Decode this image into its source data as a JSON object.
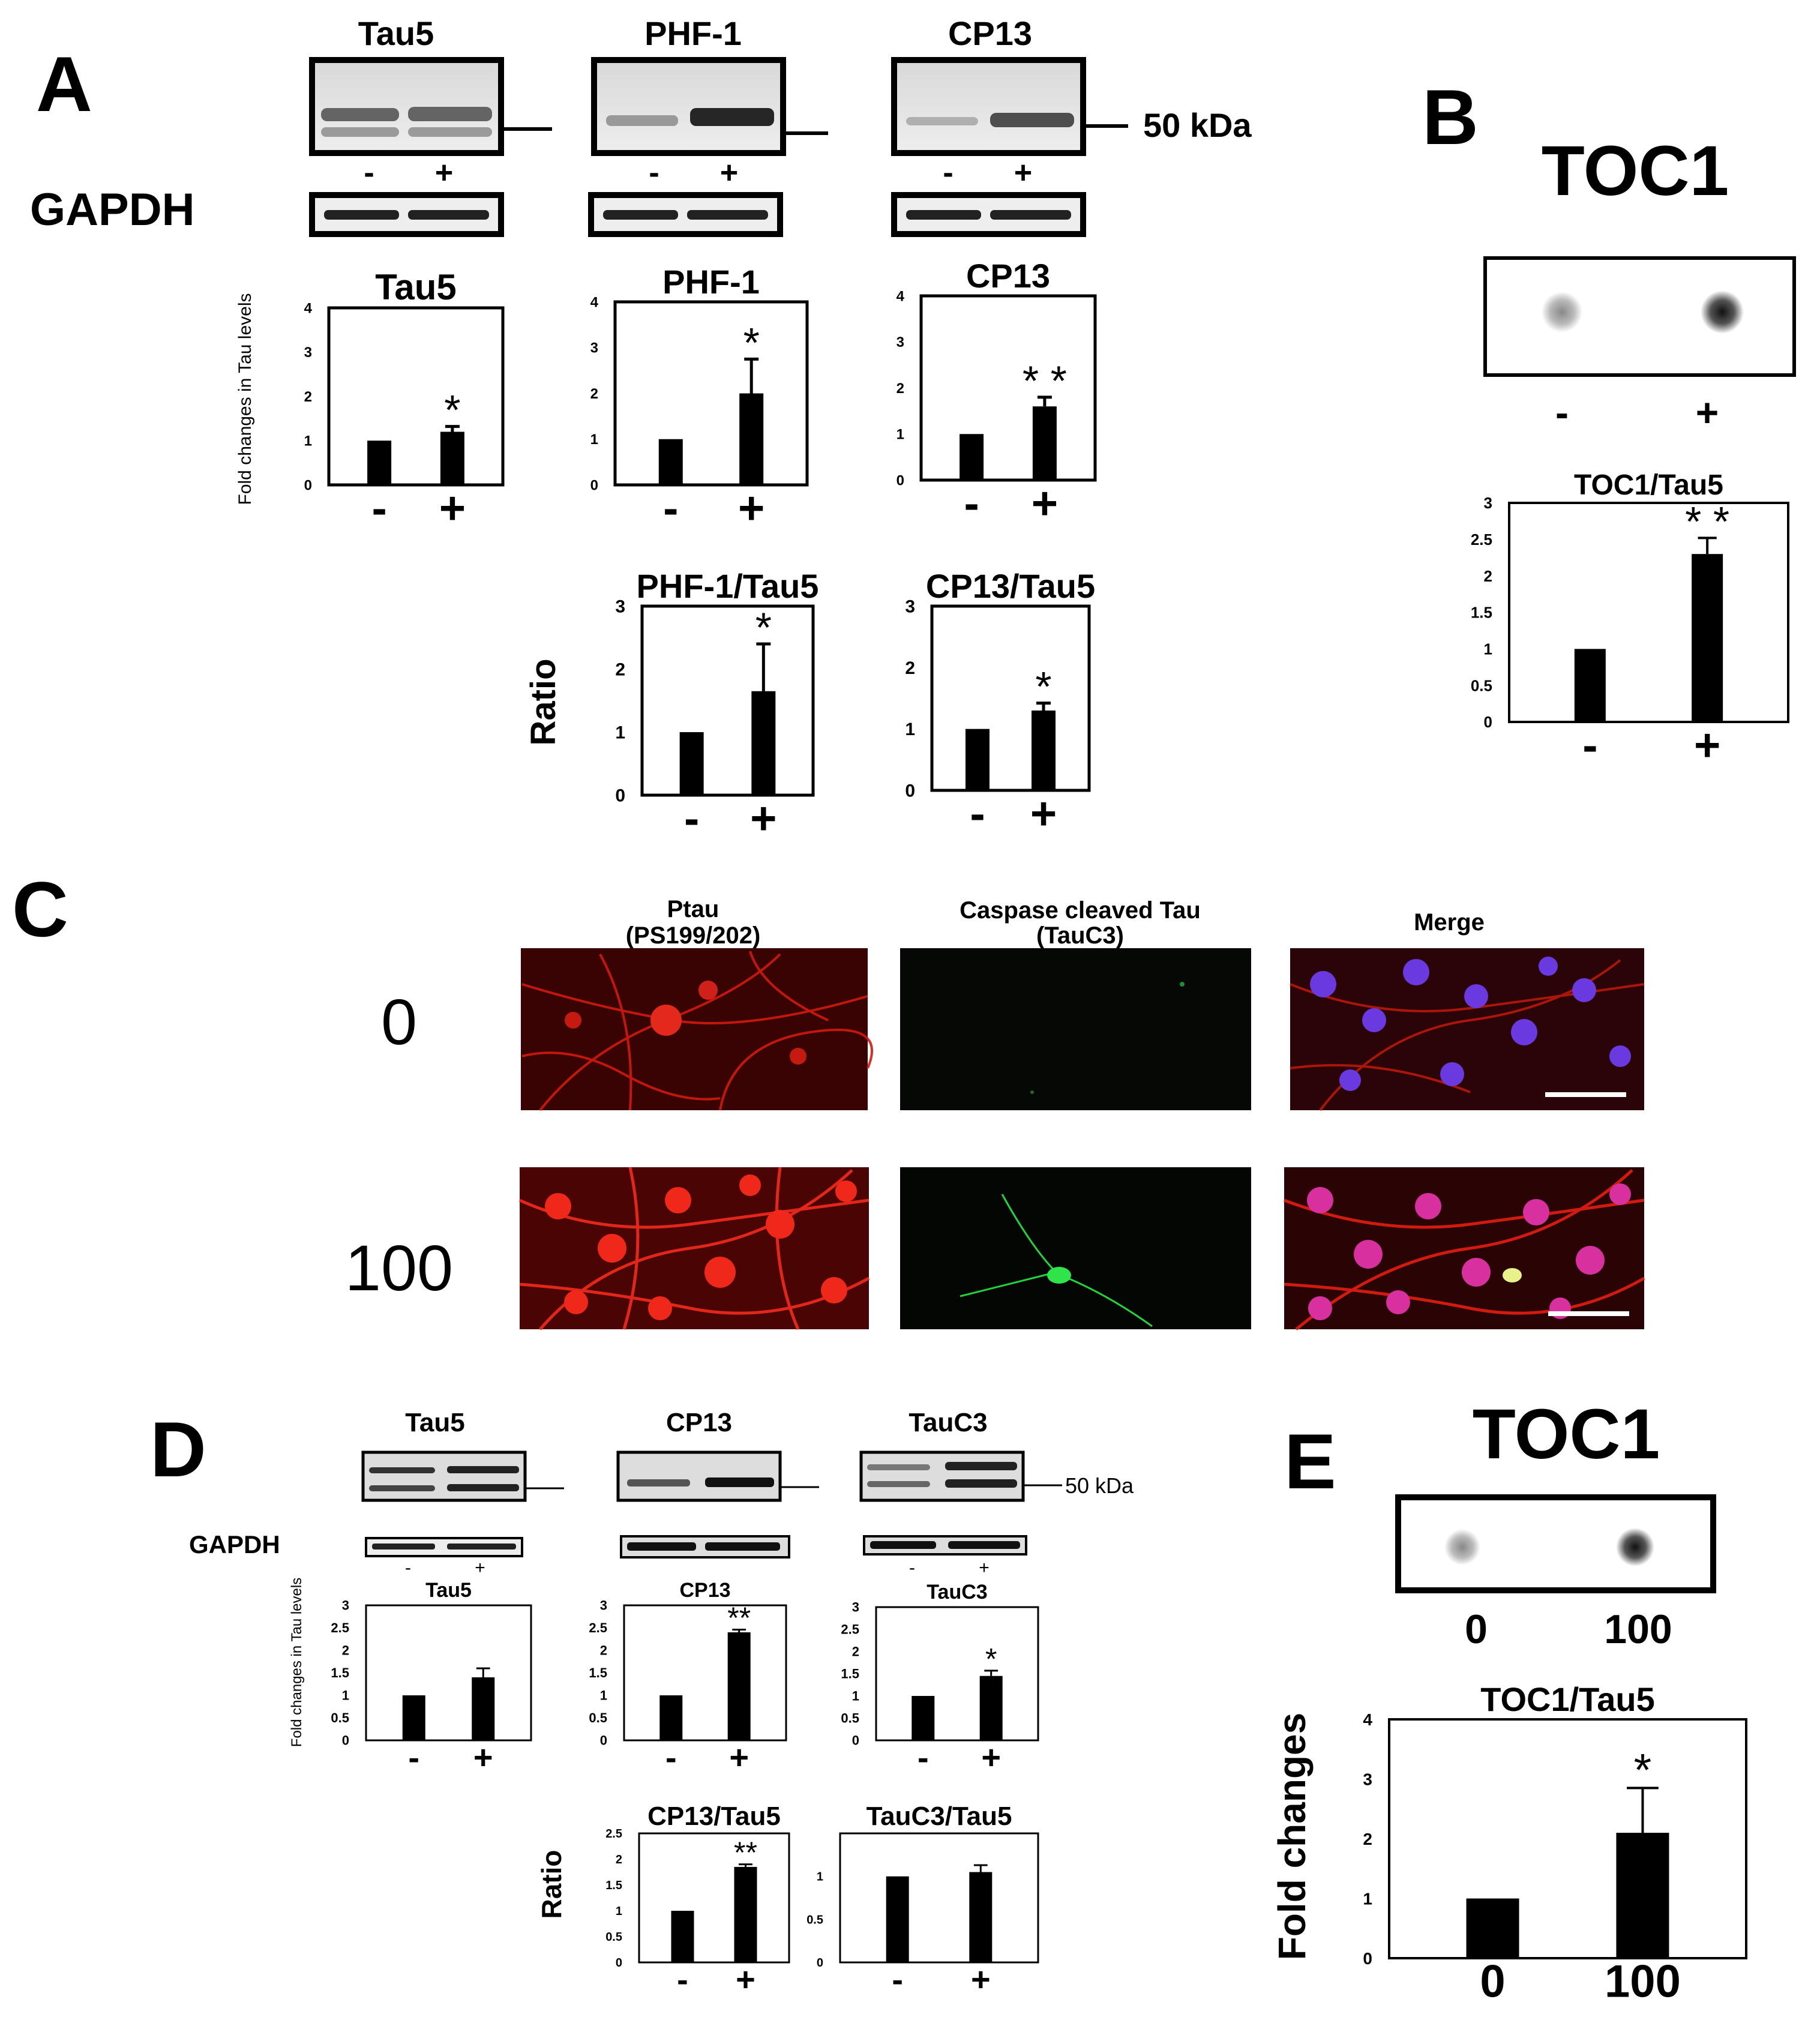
{
  "panels": {
    "A": "A",
    "B": "B",
    "C": "C",
    "D": "D",
    "E": "E"
  },
  "A": {
    "blot_titles": [
      "Tau5",
      "PHF-1",
      "CP13"
    ],
    "lane_labels": [
      "-",
      "+"
    ],
    "marker": "50 kDa",
    "loading": "GAPDH",
    "ylabel_fold": "Fold changes in Tau levels",
    "ylabel_ratio": "Ratio"
  },
  "B": {
    "title": "TOC1",
    "lane_labels": [
      "-",
      "+"
    ]
  },
  "C": {
    "col_titles": [
      [
        "Ptau",
        "(PS199/202)"
      ],
      [
        "Caspase cleaved Tau",
        "(TauC3)"
      ],
      [
        "Merge"
      ]
    ],
    "row_labels": [
      "0",
      "100"
    ]
  },
  "D": {
    "blot_titles": [
      "Tau5",
      "CP13",
      "TauC3"
    ],
    "lane_labels": [
      "-",
      "+"
    ],
    "marker": "50 kDa",
    "loading": "GAPDH",
    "ylabel_fold": "Fold changes in Tau levels",
    "ylabel_ratio": "Ratio"
  },
  "E": {
    "title": "TOC1",
    "lane_labels": [
      "0",
      "100"
    ],
    "ylabel": "Fold changes"
  },
  "chart_data": [
    {
      "id": "A-Tau5",
      "type": "bar",
      "title": "Tau5",
      "categories": [
        "-",
        "+"
      ],
      "values": [
        1,
        1.2
      ],
      "errors": [
        0,
        0.12
      ],
      "ylim": [
        0,
        4
      ],
      "yticks": [
        "0",
        "1",
        "2",
        "3",
        "4"
      ],
      "sig": "*"
    },
    {
      "id": "A-PHF1",
      "type": "bar",
      "title": "PHF-1",
      "categories": [
        "-",
        "+"
      ],
      "values": [
        1,
        2.0
      ],
      "errors": [
        0,
        0.75
      ],
      "ylim": [
        0,
        4
      ],
      "yticks": [
        "0",
        "1",
        "2",
        "3",
        "4"
      ],
      "sig": "*"
    },
    {
      "id": "A-CP13",
      "type": "bar",
      "title": "CP13",
      "categories": [
        "-",
        "+"
      ],
      "values": [
        1,
        1.6
      ],
      "errors": [
        0,
        0.2
      ],
      "ylim": [
        0,
        4
      ],
      "yticks": [
        "0",
        "1",
        "2",
        "3",
        "4"
      ],
      "sig": "* *"
    },
    {
      "id": "A-PHF1Tau5",
      "type": "bar",
      "title": "PHF-1/Tau5",
      "categories": [
        "-",
        "+"
      ],
      "values": [
        1,
        1.65
      ],
      "errors": [
        0,
        0.75
      ],
      "ylim": [
        0,
        3
      ],
      "yticks": [
        "0",
        "1",
        "2",
        "3"
      ],
      "sig": "*"
    },
    {
      "id": "A-CP13Tau5",
      "type": "bar",
      "title": "CP13/Tau5",
      "categories": [
        "-",
        "+"
      ],
      "values": [
        1,
        1.3
      ],
      "errors": [
        0,
        0.12
      ],
      "ylim": [
        0,
        3
      ],
      "yticks": [
        "0",
        "1",
        "2",
        "3"
      ],
      "sig": "*"
    },
    {
      "id": "B-TOC1Tau5",
      "type": "bar",
      "title": "TOC1/Tau5",
      "categories": [
        "-",
        "+"
      ],
      "values": [
        1,
        2.3
      ],
      "errors": [
        0,
        0.22
      ],
      "ylim": [
        0,
        3
      ],
      "yticks": [
        "0",
        "0.5",
        "1",
        "1.5",
        "2",
        "2.5",
        "3"
      ],
      "sig": "* *"
    },
    {
      "id": "D-Tau5",
      "type": "bar",
      "title": "Tau5",
      "categories": [
        "-",
        "+"
      ],
      "values": [
        1,
        1.4
      ],
      "errors": [
        0,
        0.2
      ],
      "ylim": [
        0,
        3
      ],
      "yticks": [
        "0",
        "0.5",
        "1",
        "1.5",
        "2",
        "2.5",
        "3"
      ],
      "sig": ""
    },
    {
      "id": "D-CP13",
      "type": "bar",
      "title": "CP13",
      "categories": [
        "-",
        "+"
      ],
      "values": [
        1,
        2.4
      ],
      "errors": [
        0,
        0.06
      ],
      "ylim": [
        0,
        3
      ],
      "yticks": [
        "0",
        "0.5",
        "1",
        "1.5",
        "2",
        "2.5",
        "3"
      ],
      "sig": "**"
    },
    {
      "id": "D-TauC3",
      "type": "bar",
      "title": "TauC3",
      "categories": [
        "-",
        "+"
      ],
      "values": [
        1,
        1.45
      ],
      "errors": [
        0,
        0.12
      ],
      "ylim": [
        0,
        3
      ],
      "yticks": [
        "0",
        "0.5",
        "1",
        "1.5",
        "2",
        "2.5",
        "3"
      ],
      "sig": "*"
    },
    {
      "id": "D-CP13Tau5",
      "type": "bar",
      "title": "CP13/Tau5",
      "categories": [
        "-",
        "+"
      ],
      "values": [
        1,
        1.85
      ],
      "errors": [
        0,
        0.05
      ],
      "ylim": [
        0,
        2.5
      ],
      "yticks": [
        "0",
        "0.5",
        "1",
        "1.5",
        "2",
        "2.5"
      ],
      "sig": "**"
    },
    {
      "id": "D-TauC3Tau5",
      "type": "bar",
      "title": "TauC3/Tau5",
      "categories": [
        "-",
        "+"
      ],
      "values": [
        1,
        1.05
      ],
      "errors": [
        0,
        0.08
      ],
      "ylim": [
        0,
        1.5
      ],
      "yticks": [
        "0",
        "0.5",
        "1"
      ],
      "sig": ""
    },
    {
      "id": "E-TOC1Tau5",
      "type": "bar",
      "title": "TOC1/Tau5",
      "categories": [
        "0",
        "100"
      ],
      "values": [
        1,
        2.1
      ],
      "errors": [
        0,
        0.75
      ],
      "ylim": [
        0,
        4
      ],
      "yticks": [
        "0",
        "1",
        "2",
        "3",
        "4"
      ],
      "sig": "*"
    }
  ],
  "colors": {
    "bar": "#000000",
    "ptau_fill": "#e11a10",
    "tauc3_fill": "#1fd63a",
    "nucleus": "#6a39e0",
    "panel_bg_dark": "#0b0b0b"
  }
}
